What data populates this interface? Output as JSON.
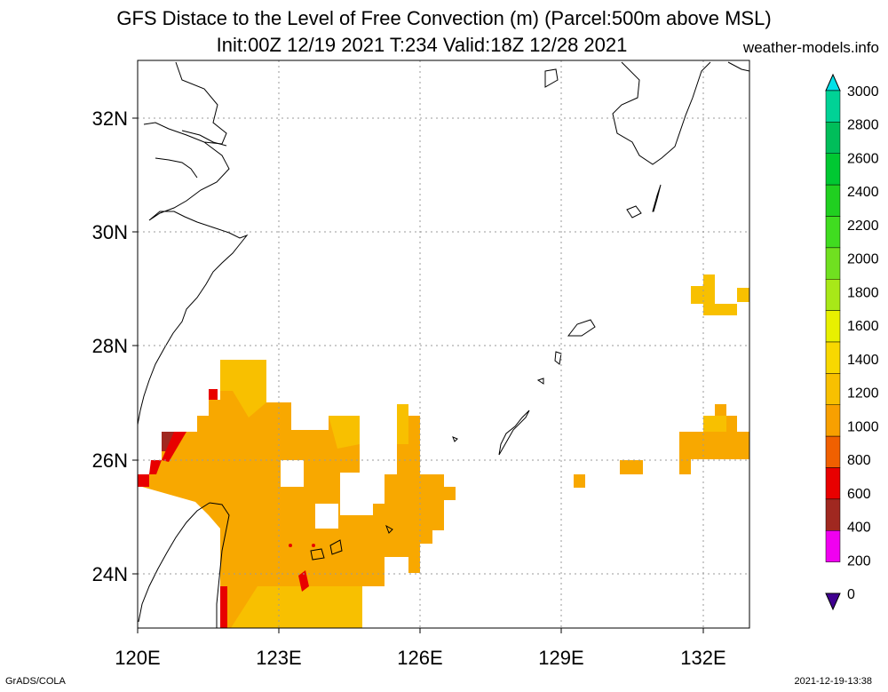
{
  "header": {
    "title_line1": "GFS Distace to the Level of Free Convection (m) (Parcel:500m above MSL)",
    "title_line2": "Init:00Z 12/19 2021 T:234 Valid:18Z 12/28 2021",
    "site": "weather-models.info"
  },
  "map": {
    "lat_labels": [
      "32N",
      "30N",
      "28N",
      "26N",
      "24N"
    ],
    "lon_labels": [
      "120E",
      "123E",
      "126E",
      "129E",
      "132E"
    ]
  },
  "colorbar": {
    "labels": [
      "3000",
      "2800",
      "2600",
      "2400",
      "2200",
      "2000",
      "1800",
      "1600",
      "1400",
      "1200",
      "1000",
      "800",
      "600",
      "400",
      "200",
      "0"
    ],
    "colors": [
      "#00e8d0",
      "#00d296",
      "#00be5a",
      "#00c832",
      "#20d020",
      "#40dc20",
      "#70e020",
      "#a8e818",
      "#e8f000",
      "#f8d800",
      "#f8c000",
      "#f8a000",
      "#f06000",
      "#e80000",
      "#a02820",
      "#f000f0",
      "#400090"
    ],
    "top_arrow_color": "#00e0e8",
    "bottom_arrow_color": "#400090"
  },
  "legend_colors": {
    "cape_orange": "#f8a800",
    "cape_yellow_orange": "#f8c000",
    "light_yellow": "#f8d020",
    "red": "#e80000",
    "brown": "#a02820"
  },
  "footer": {
    "left": "GrADS/COLA",
    "right": "2021-12-19-13:38"
  }
}
